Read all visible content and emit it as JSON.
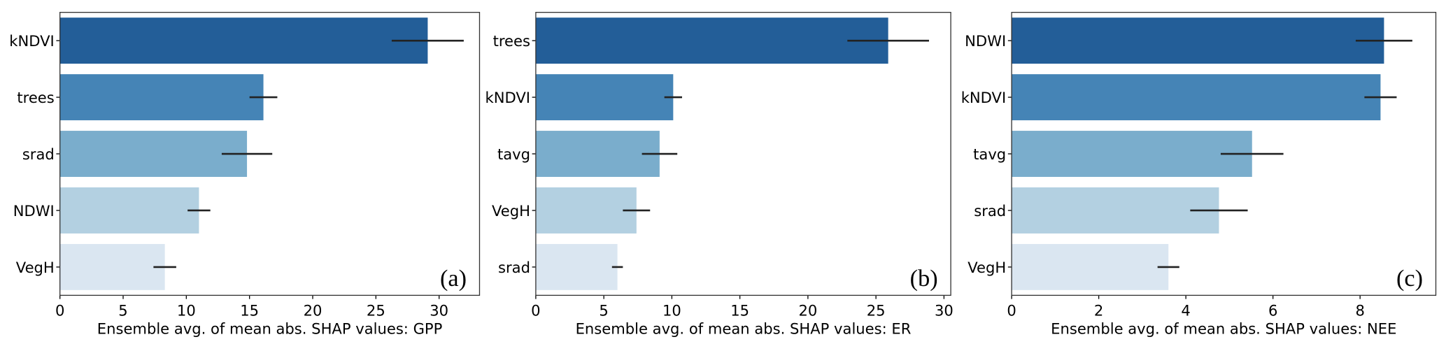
{
  "chart_data": [
    {
      "type": "bar",
      "orientation": "horizontal",
      "annotation": "(a)",
      "x_label": "Ensemble avg. of mean abs. SHAP values: GPP",
      "categories": [
        "kNDVI",
        "trees",
        "srad",
        "NDWI",
        "VegH"
      ],
      "values": [
        29.1,
        16.1,
        14.8,
        11.0,
        8.3
      ],
      "errors": [
        2.85,
        1.1,
        2.0,
        0.9,
        0.9
      ],
      "colors": [
        "#235e98",
        "#4584b6",
        "#7aadcc",
        "#b3d0e1",
        "#dae6f1"
      ],
      "xlim": [
        0,
        33.2
      ],
      "xticks": [
        0,
        5,
        10,
        15,
        20,
        25,
        30
      ]
    },
    {
      "type": "bar",
      "orientation": "horizontal",
      "annotation": "(b)",
      "x_label": "Ensemble avg. of mean abs. SHAP values: ER",
      "categories": [
        "trees",
        "kNDVI",
        "tavg",
        "VegH",
        "srad"
      ],
      "values": [
        25.9,
        10.1,
        9.1,
        7.4,
        6.0
      ],
      "errors": [
        3.0,
        0.65,
        1.3,
        1.0,
        0.4
      ],
      "colors": [
        "#235e98",
        "#4584b6",
        "#7aadcc",
        "#b3d0e1",
        "#dae6f1"
      ],
      "xlim": [
        0,
        30.5
      ],
      "xticks": [
        0,
        5,
        10,
        15,
        20,
        25,
        30
      ]
    },
    {
      "type": "bar",
      "orientation": "horizontal",
      "annotation": "(c)",
      "x_label": "Ensemble avg. of mean abs. SHAP values: NEE",
      "categories": [
        "NDWI",
        "kNDVI",
        "tavg",
        "srad",
        "VegH"
      ],
      "values": [
        8.55,
        8.47,
        5.52,
        4.76,
        3.6
      ],
      "errors": [
        0.65,
        0.37,
        0.72,
        0.66,
        0.25
      ],
      "colors": [
        "#235e98",
        "#4584b6",
        "#7aadcc",
        "#b3d0e1",
        "#dae6f1"
      ],
      "xlim": [
        0,
        9.74
      ],
      "xticks": [
        0,
        2,
        4,
        6,
        8
      ]
    }
  ]
}
